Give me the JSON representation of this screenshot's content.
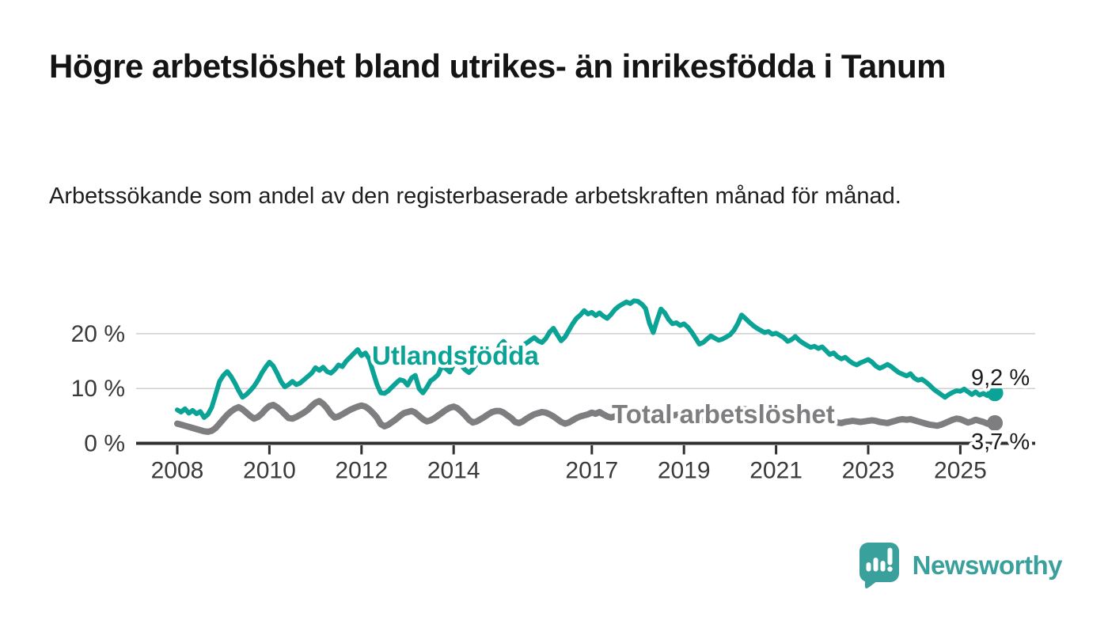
{
  "page": {
    "title": "Högre arbetslöshet bland utrikes- än inrikesfödda i Tanum",
    "subtitle": "Arbetssökande som andel av den registerbaserade arbetskraften månad för månad."
  },
  "branding": {
    "logo_text": "Newsworthy",
    "logo_icon": "speech-bubble-bar-chart",
    "logo_color": "#39a09b"
  },
  "colors": {
    "series_foreign_born": "#0ba396",
    "series_total": "#7e7e81",
    "grid": "#cfcfcf",
    "axis": "#2f2f2f",
    "tick_text": "#3a3a3a",
    "value_label_text": "#1c1c1c"
  },
  "chart_data": {
    "type": "line",
    "title": "Högre arbetslöshet bland utrikes- än inrikesfödda i Tanum",
    "subtitle": "Arbetssökande som andel av den registerbaserade arbetskraften månad för månad.",
    "x_unit": "month",
    "x_start": "2008-01",
    "x_end": "2025-10",
    "grid": "horizontal",
    "ylim": [
      0,
      27.5
    ],
    "yticks": [
      {
        "value": 0,
        "label": "0 %"
      },
      {
        "value": 10,
        "label": "10 %"
      },
      {
        "value": 20,
        "label": "20 %"
      }
    ],
    "xticks": [
      {
        "year": 2008,
        "label": "2008"
      },
      {
        "year": 2010,
        "label": "2010"
      },
      {
        "year": 2012,
        "label": "2012"
      },
      {
        "year": 2014,
        "label": "2014"
      },
      {
        "year": 2017,
        "label": "2017"
      },
      {
        "year": 2019,
        "label": "2019"
      },
      {
        "year": 2021,
        "label": "2021"
      },
      {
        "year": 2023,
        "label": "2023"
      },
      {
        "year": 2025,
        "label": "2025"
      }
    ],
    "series": [
      {
        "name": "Utlandsfödda",
        "color": "#0ba396",
        "end_value": 9.2,
        "end_label": "9,2 %",
        "values": [
          6.1,
          5.7,
          6.3,
          5.5,
          6.0,
          5.4,
          5.8,
          4.7,
          5.3,
          6.6,
          8.9,
          11.3,
          12.4,
          13.1,
          12.2,
          11.0,
          9.6,
          8.4,
          8.9,
          9.6,
          10.4,
          11.5,
          12.8,
          13.9,
          14.8,
          14.1,
          12.8,
          11.3,
          10.3,
          10.7,
          11.3,
          10.7,
          11.0,
          11.6,
          12.2,
          12.8,
          13.8,
          13.3,
          13.9,
          13.1,
          12.8,
          13.4,
          14.3,
          14.0,
          15.0,
          15.7,
          16.4,
          17.1,
          16.0,
          16.5,
          15.4,
          13.0,
          10.8,
          9.2,
          9.1,
          9.6,
          10.3,
          11.0,
          11.6,
          11.4,
          10.6,
          11.9,
          12.4,
          10.0,
          9.2,
          10.2,
          11.4,
          11.9,
          12.6,
          14.2,
          13.6,
          13.0,
          14.4,
          15.0,
          14.2,
          13.4,
          12.9,
          13.6,
          14.5,
          15.2,
          15.8,
          16.3,
          15.6,
          16.1,
          17.9,
          18.6,
          17.6,
          17.1,
          16.6,
          17.2,
          17.9,
          18.3,
          18.8,
          19.3,
          18.7,
          18.4,
          19.1,
          20.3,
          21.0,
          19.8,
          18.7,
          19.4,
          20.6,
          21.8,
          22.8,
          23.4,
          24.2,
          23.6,
          23.9,
          23.3,
          23.8,
          23.2,
          22.8,
          23.5,
          24.4,
          25.0,
          25.4,
          25.8,
          25.5,
          26.0,
          25.9,
          25.4,
          24.6,
          21.9,
          20.2,
          22.5,
          24.5,
          23.8,
          22.6,
          21.8,
          22.0,
          21.5,
          21.8,
          21.2,
          20.3,
          19.2,
          18.1,
          18.4,
          19.0,
          19.6,
          19.2,
          18.8,
          19.0,
          19.4,
          19.8,
          20.6,
          21.8,
          23.4,
          22.8,
          22.1,
          21.5,
          21.0,
          20.6,
          20.2,
          20.4,
          19.9,
          20.1,
          19.7,
          19.3,
          18.6,
          18.9,
          19.5,
          18.8,
          18.3,
          17.9,
          17.5,
          17.7,
          17.3,
          17.6,
          16.9,
          16.2,
          16.5,
          15.8,
          15.4,
          15.7,
          15.1,
          14.6,
          14.3,
          14.7,
          15.0,
          15.3,
          14.8,
          14.1,
          13.7,
          14.0,
          14.4,
          14.0,
          13.4,
          12.9,
          12.6,
          12.3,
          12.7,
          11.9,
          11.5,
          11.7,
          11.2,
          10.6,
          9.9,
          9.4,
          8.9,
          8.4,
          8.9,
          9.3,
          9.6,
          9.5,
          9.9,
          9.4,
          8.9,
          9.4,
          8.8,
          9.1,
          8.7,
          9.0,
          9.2
        ]
      },
      {
        "name": "Total arbetslöshet",
        "color": "#7e7e81",
        "end_value": 3.7,
        "end_label": "3,7 %",
        "values": [
          3.6,
          3.4,
          3.2,
          3.0,
          2.8,
          2.6,
          2.4,
          2.2,
          2.1,
          2.3,
          2.8,
          3.6,
          4.4,
          5.2,
          5.8,
          6.3,
          6.6,
          6.2,
          5.6,
          5.0,
          4.5,
          4.8,
          5.4,
          6.2,
          6.8,
          7.0,
          6.6,
          6.0,
          5.3,
          4.6,
          4.5,
          4.8,
          5.2,
          5.6,
          6.1,
          6.8,
          7.4,
          7.7,
          7.2,
          6.4,
          5.4,
          4.7,
          4.9,
          5.3,
          5.7,
          6.1,
          6.4,
          6.7,
          6.9,
          6.7,
          6.2,
          5.5,
          4.7,
          3.5,
          3.1,
          3.4,
          3.9,
          4.4,
          5.0,
          5.5,
          5.7,
          5.9,
          5.6,
          5.0,
          4.4,
          4.0,
          4.2,
          4.6,
          5.1,
          5.6,
          6.1,
          6.5,
          6.7,
          6.4,
          5.8,
          5.1,
          4.3,
          3.8,
          4.0,
          4.4,
          4.8,
          5.3,
          5.7,
          5.9,
          5.9,
          5.6,
          5.1,
          4.6,
          3.9,
          3.7,
          4.0,
          4.5,
          4.9,
          5.3,
          5.5,
          5.7,
          5.6,
          5.3,
          4.9,
          4.4,
          3.9,
          3.6,
          3.8,
          4.2,
          4.6,
          4.9,
          5.1,
          5.3,
          5.6,
          5.4,
          5.7,
          5.3,
          4.9,
          4.7,
          4.9,
          5.2,
          5.4,
          5.6,
          5.5,
          5.6,
          5.5,
          5.3,
          5.0,
          4.6,
          4.3,
          4.1,
          4.3,
          4.6,
          4.9,
          5.1,
          5.2,
          5.3,
          5.2,
          5.0,
          4.8,
          4.5,
          4.3,
          4.2,
          4.4,
          4.6,
          4.8,
          5.0,
          5.1,
          5.3,
          5.5,
          5.7,
          6.0,
          6.3,
          6.2,
          6.0,
          5.8,
          5.6,
          5.4,
          5.3,
          5.2,
          5.1,
          5.0,
          4.9,
          4.8,
          4.6,
          4.4,
          4.3,
          4.4,
          4.5,
          4.4,
          4.3,
          4.2,
          4.3,
          4.4,
          4.3,
          4.1,
          4.0,
          3.8,
          3.7,
          3.9,
          4.0,
          4.1,
          4.0,
          3.9,
          4.0,
          4.1,
          4.2,
          4.1,
          3.9,
          3.8,
          3.7,
          3.9,
          4.1,
          4.3,
          4.4,
          4.3,
          4.4,
          4.2,
          4.0,
          3.8,
          3.6,
          3.4,
          3.3,
          3.2,
          3.4,
          3.7,
          4.0,
          4.3,
          4.5,
          4.4,
          4.1,
          3.8,
          4.0,
          4.3,
          4.1,
          3.9,
          3.6,
          3.8,
          3.7
        ]
      }
    ],
    "legend_position": "inline-labels-on-chart"
  }
}
